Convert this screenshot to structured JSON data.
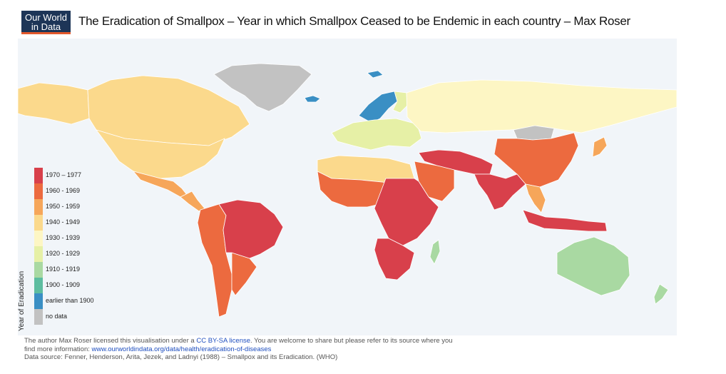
{
  "logo": {
    "line1": "Our World",
    "line2": "in Data"
  },
  "title": "The Eradication of Smallpox – Year in which Smallpox Ceased to be Endemic in each country – Max Roser",
  "legend": {
    "title": "Year of Eradication",
    "items": [
      {
        "label": "1970 – 1977",
        "color": "#d8404b"
      },
      {
        "label": "1960 - 1969",
        "color": "#ec6a3f"
      },
      {
        "label": "1950 - 1959",
        "color": "#f6a65a"
      },
      {
        "label": "1940 - 1949",
        "color": "#fbd98c"
      },
      {
        "label": "1930 - 1939",
        "color": "#fdf6c4"
      },
      {
        "label": "1920 - 1929",
        "color": "#e6f0a6"
      },
      {
        "label": "1910 - 1919",
        "color": "#a9d9a2"
      },
      {
        "label": "1900 - 1909",
        "color": "#5dbda0"
      },
      {
        "label": "earlier than 1900",
        "color": "#3a8fc4"
      },
      {
        "label": "no data",
        "color": "#c2c2c2"
      }
    ]
  },
  "regions": [
    {
      "name": "Greenland",
      "color": "#c2c2c2"
    },
    {
      "name": "Canada",
      "color": "#fbd98c"
    },
    {
      "name": "Alaska",
      "color": "#fbd98c"
    },
    {
      "name": "United States",
      "color": "#fbd98c"
    },
    {
      "name": "Mexico",
      "color": "#f6a65a"
    },
    {
      "name": "Central America",
      "color": "#f6a65a"
    },
    {
      "name": "Brazil",
      "color": "#d8404b"
    },
    {
      "name": "Andes",
      "color": "#ec6a3f"
    },
    {
      "name": "Southern Cone",
      "color": "#ec6a3f"
    },
    {
      "name": "Scandinavia",
      "color": "#3a8fc4"
    },
    {
      "name": "Finland",
      "color": "#e6f0a6"
    },
    {
      "name": "Europe",
      "color": "#e6f0a6"
    },
    {
      "name": "Russia",
      "color": "#fdf6c4"
    },
    {
      "name": "Mongolia",
      "color": "#c2c2c2"
    },
    {
      "name": "China",
      "color": "#ec6a3f"
    },
    {
      "name": "India",
      "color": "#d8404b"
    },
    {
      "name": "Middle East",
      "color": "#d8404b"
    },
    {
      "name": "Arabia",
      "color": "#ec6a3f"
    },
    {
      "name": "North Africa",
      "color": "#fbd98c"
    },
    {
      "name": "West Africa",
      "color": "#ec6a3f"
    },
    {
      "name": "Central Africa",
      "color": "#d8404b"
    },
    {
      "name": "Southern Africa",
      "color": "#d8404b"
    },
    {
      "name": "Madagascar",
      "color": "#a9d9a2"
    },
    {
      "name": "Southeast Asia",
      "color": "#f6a65a"
    },
    {
      "name": "Indonesia",
      "color": "#d8404b"
    },
    {
      "name": "Japan",
      "color": "#f6a65a"
    },
    {
      "name": "Australia",
      "color": "#a9d9a2"
    },
    {
      "name": "New Zealand",
      "color": "#a9d9a2"
    },
    {
      "name": "Iceland",
      "color": "#3a8fc4"
    },
    {
      "name": "Svalbard",
      "color": "#3a8fc4"
    }
  ],
  "footer": {
    "line1_a": "The author Max Roser licensed this visualisation under a ",
    "license_link": "CC BY-SA license",
    "line1_b": ". You are welcome to share but please refer to its source where you",
    "line2_a": "find more information: ",
    "source_link": "www.ourworldindata.org/data/health/eradication-of-diseases",
    "line3": "Data source: Fenner, Henderson, Arita, Jezek, and Ladnyi (1988) – Smallpox and its Eradication. (WHO)"
  }
}
